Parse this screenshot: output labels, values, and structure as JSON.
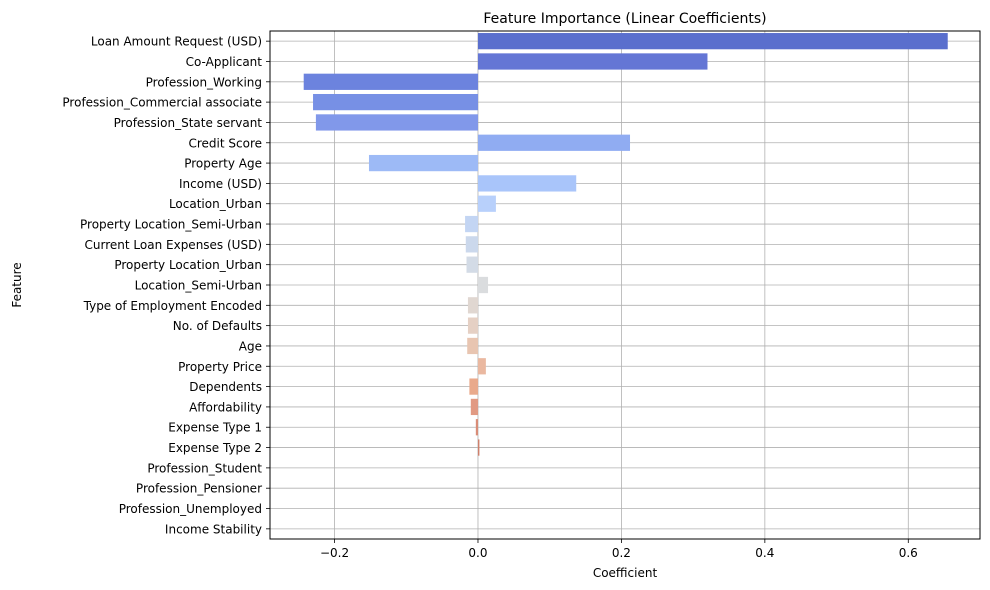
{
  "chart_data": {
    "type": "bar",
    "orientation": "horizontal",
    "title": "Feature Importance (Linear Coefficients)",
    "xlabel": "Coefficient",
    "ylabel": "Feature",
    "xlim": [
      -0.29,
      0.7
    ],
    "xticks": [
      -0.2,
      0.0,
      0.2,
      0.4,
      0.6
    ],
    "xtick_labels": [
      "−0.2",
      "0.0",
      "0.2",
      "0.4",
      "0.6"
    ],
    "grid": true,
    "palette": "coolwarm",
    "categories": [
      "Loan Amount Request (USD)",
      "Co-Applicant",
      "Profession_Working",
      "Profession_Commercial associate",
      "Profession_State servant",
      "Credit Score",
      "Property Age",
      "Income (USD)",
      "Location_Urban",
      "Property Location_Semi-Urban",
      "Current Loan Expenses (USD)",
      "Property Location_Urban",
      "Location_Semi-Urban",
      "Type of Employment Encoded",
      "No. of Defaults",
      "Age",
      "Property Price",
      "Dependents",
      "Affordability",
      "Expense Type 1",
      "Expense Type 2",
      "Profession_Student",
      "Profession_Pensioner",
      "Profession_Unemployed",
      "Income Stability"
    ],
    "values": [
      0.655,
      0.32,
      -0.243,
      -0.23,
      -0.226,
      0.212,
      -0.152,
      0.137,
      0.025,
      -0.018,
      -0.017,
      -0.016,
      0.014,
      -0.014,
      -0.014,
      -0.015,
      0.011,
      -0.012,
      -0.01,
      -0.003,
      0.002,
      0.0,
      0.0,
      0.0,
      0.0
    ],
    "colors": [
      "#5a6fcd",
      "#6476d5",
      "#6c83de",
      "#7790e5",
      "#8198ea",
      "#90acf2",
      "#9dbaf6",
      "#a9c5fa",
      "#b8d0fb",
      "#c3d5f3",
      "#cbd8ec",
      "#d3dbe6",
      "#dadcde",
      "#e0d7d1",
      "#e5d0c4",
      "#e8c5b1",
      "#eab8a0",
      "#e9aa8c",
      "#e19a83",
      "#d98c77",
      "#cf806b",
      "#c6765f",
      "#bc6a55",
      "#b05e4c",
      "#a45345"
    ]
  }
}
